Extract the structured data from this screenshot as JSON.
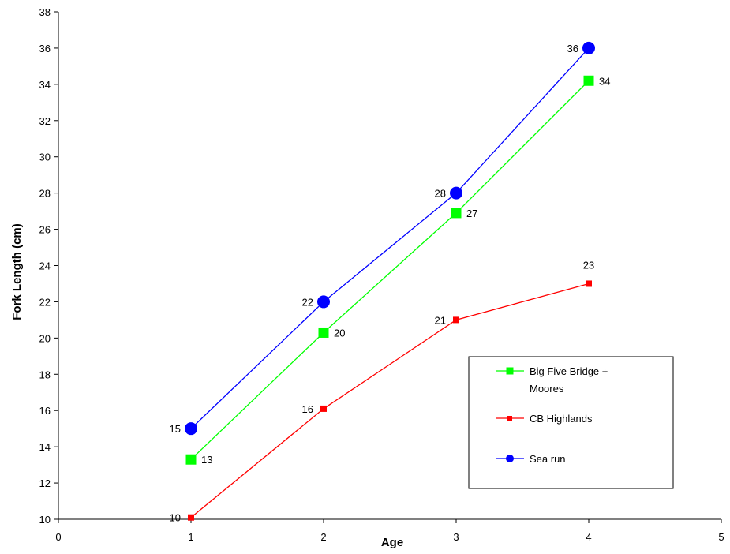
{
  "chart_data": {
    "type": "line",
    "title": "",
    "xlabel": "Age",
    "ylabel": "Fork Length (cm)",
    "xlim": [
      0,
      5
    ],
    "ylim": [
      10,
      38
    ],
    "x_ticks": [
      0,
      1,
      2,
      3,
      4,
      5
    ],
    "y_ticks": [
      10,
      12,
      14,
      16,
      18,
      20,
      22,
      24,
      26,
      28,
      30,
      32,
      34,
      36,
      38
    ],
    "grid": false,
    "legend_position": "bottom-right",
    "series": [
      {
        "name": "Sea run",
        "color": "#0000ff",
        "marker": "circle",
        "x": [
          1,
          2,
          3,
          4
        ],
        "values": [
          15,
          22,
          28,
          36
        ],
        "labels": [
          "15",
          "22",
          "28",
          "36"
        ],
        "label_side": "left"
      },
      {
        "name": "Big Five Bridge + Moores",
        "color": "#00ff00",
        "marker": "square",
        "x": [
          1,
          2,
          3,
          4
        ],
        "values": [
          13.3,
          20.3,
          26.9,
          34.2
        ],
        "labels": [
          "13",
          "20",
          "27",
          "34"
        ],
        "label_side": "right"
      },
      {
        "name": "CB Highlands",
        "color": "#ff0000",
        "marker": "small-square",
        "x": [
          1,
          2,
          3,
          4
        ],
        "values": [
          10.1,
          16.1,
          21.0,
          23.0
        ],
        "labels": [
          "10",
          "16",
          "21",
          "23"
        ],
        "label_side": "left"
      }
    ],
    "legend": {
      "entries": [
        {
          "lines": [
            "Big Five Bridge +",
            "Moores"
          ],
          "series": "Big Five Bridge + Moores"
        },
        {
          "lines": [
            "CB Highlands"
          ],
          "series": "CB Highlands"
        },
        {
          "lines": [
            "Sea run"
          ],
          "series": "Sea run"
        }
      ]
    }
  }
}
